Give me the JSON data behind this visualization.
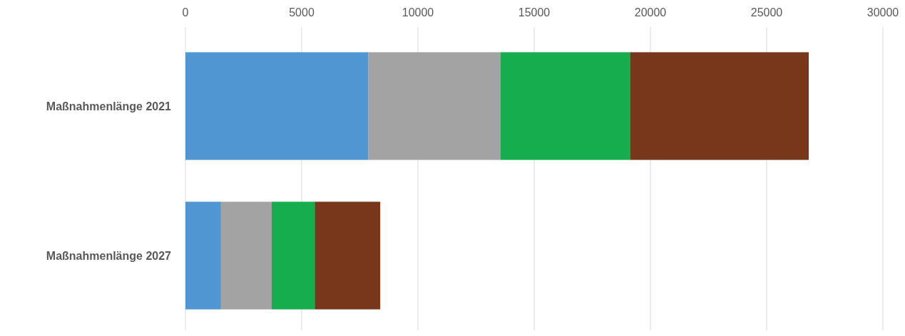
{
  "chart_data": {
    "type": "bar",
    "orientation": "horizontal",
    "stacked": true,
    "categories": [
      "Maßnahmenlänge 2021",
      "Maßnahmenlänge 2027"
    ],
    "series": [
      {
        "color": "#4f96d2",
        "values": [
          7870,
          1530
        ]
      },
      {
        "color": "#a3a3a3",
        "values": [
          5680,
          2180
        ]
      },
      {
        "color": "#15ad4e",
        "values": [
          5570,
          1850
        ]
      },
      {
        "color": "#78371a",
        "values": [
          7690,
          2820
        ]
      }
    ],
    "xlim": [
      0,
      30000
    ],
    "xticks": [
      0,
      5000,
      10000,
      15000,
      20000,
      25000,
      30000
    ],
    "grid": "x"
  }
}
